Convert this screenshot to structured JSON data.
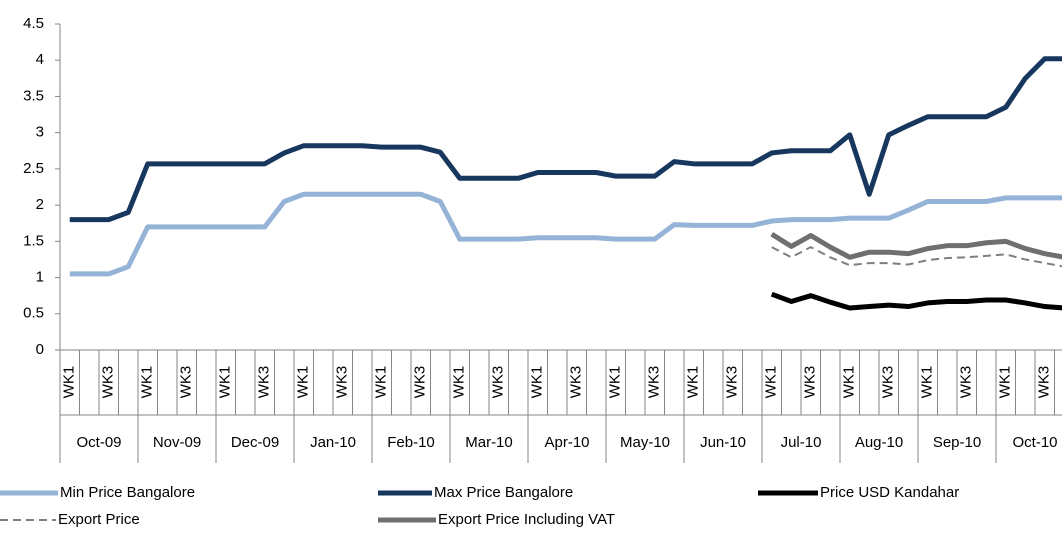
{
  "chart_data": {
    "type": "line",
    "categories": [
      "WK1",
      null,
      "WK3",
      null,
      "WK1",
      null,
      "WK3",
      null,
      "WK1",
      null,
      "WK3",
      null,
      "WK1",
      null,
      "WK3",
      null,
      "WK1",
      null,
      "WK3",
      null,
      "WK1",
      null,
      "WK3",
      null,
      "WK1",
      null,
      "WK3",
      null,
      "WK1",
      null,
      "WK3",
      null,
      "WK1",
      null,
      "WK3",
      null,
      "WK1",
      null,
      "WK3",
      null,
      "WK1",
      null,
      "WK3",
      null,
      "WK1",
      null,
      "WK3",
      null,
      "WK1",
      null,
      "WK3",
      null
    ],
    "months": [
      "Oct-09",
      "Nov-09",
      "Dec-09",
      "Jan-10",
      "Feb-10",
      "Mar-10",
      "Apr-10",
      "May-10",
      "Jun-10",
      "Jul-10",
      "Aug-10",
      "Sep-10",
      "Oct-10"
    ],
    "ylim": [
      0,
      4.5
    ],
    "yticks": [
      0,
      0.5,
      1,
      1.5,
      2,
      2.5,
      3,
      3.5,
      4,
      4.5
    ],
    "series": [
      {
        "name": "Min Price Bangalore",
        "color": "#95b3d7",
        "values": [
          1.05,
          1.05,
          1.05,
          1.15,
          1.7,
          1.7,
          1.7,
          1.7,
          1.7,
          1.7,
          1.7,
          2.05,
          2.15,
          2.15,
          2.15,
          2.15,
          2.15,
          2.15,
          2.15,
          2.05,
          1.53,
          1.53,
          1.53,
          1.53,
          1.55,
          1.55,
          1.55,
          1.55,
          1.53,
          1.53,
          1.53,
          1.73,
          1.72,
          1.72,
          1.72,
          1.72,
          1.78,
          1.8,
          1.8,
          1.8,
          1.82,
          1.82,
          1.82,
          1.93,
          2.05,
          2.05,
          2.05,
          2.05,
          2.1,
          2.1,
          2.1,
          2.1
        ]
      },
      {
        "name": "Max Price Bangalore",
        "color": "#17375e",
        "values": [
          1.8,
          1.8,
          1.8,
          1.9,
          2.57,
          2.57,
          2.57,
          2.57,
          2.57,
          2.57,
          2.57,
          2.72,
          2.82,
          2.82,
          2.82,
          2.82,
          2.8,
          2.8,
          2.8,
          2.73,
          2.37,
          2.37,
          2.37,
          2.37,
          2.45,
          2.45,
          2.45,
          2.45,
          2.4,
          2.4,
          2.4,
          2.6,
          2.57,
          2.57,
          2.57,
          2.57,
          2.72,
          2.75,
          2.75,
          2.75,
          2.97,
          2.15,
          2.97,
          3.1,
          3.22,
          3.22,
          3.22,
          3.22,
          3.35,
          3.75,
          4.02,
          4.02
        ]
      },
      {
        "name": "Price USD Kandahar",
        "color": "#000000",
        "values": [
          null,
          null,
          null,
          null,
          null,
          null,
          null,
          null,
          null,
          null,
          null,
          null,
          null,
          null,
          null,
          null,
          null,
          null,
          null,
          null,
          null,
          null,
          null,
          null,
          null,
          null,
          null,
          null,
          null,
          null,
          null,
          null,
          null,
          null,
          null,
          null,
          0.77,
          0.67,
          0.75,
          0.66,
          0.58,
          0.6,
          0.62,
          0.6,
          0.65,
          0.67,
          0.67,
          0.69,
          0.69,
          0.65,
          0.6,
          0.58
        ]
      },
      {
        "name": "Export Price",
        "color": "#7f7f7f",
        "dashed": true,
        "values": [
          null,
          null,
          null,
          null,
          null,
          null,
          null,
          null,
          null,
          null,
          null,
          null,
          null,
          null,
          null,
          null,
          null,
          null,
          null,
          null,
          null,
          null,
          null,
          null,
          null,
          null,
          null,
          null,
          null,
          null,
          null,
          null,
          null,
          null,
          null,
          null,
          1.42,
          1.28,
          1.42,
          1.28,
          1.17,
          1.2,
          1.2,
          1.18,
          1.24,
          1.27,
          1.28,
          1.3,
          1.32,
          1.25,
          1.2,
          1.15
        ]
      },
      {
        "name": "Export Price Including VAT",
        "color": "#6f6f6f",
        "values": [
          null,
          null,
          null,
          null,
          null,
          null,
          null,
          null,
          null,
          null,
          null,
          null,
          null,
          null,
          null,
          null,
          null,
          null,
          null,
          null,
          null,
          null,
          null,
          null,
          null,
          null,
          null,
          null,
          null,
          null,
          null,
          null,
          null,
          null,
          null,
          null,
          1.6,
          1.43,
          1.58,
          1.42,
          1.28,
          1.35,
          1.35,
          1.33,
          1.4,
          1.44,
          1.44,
          1.48,
          1.5,
          1.4,
          1.33,
          1.28
        ]
      }
    ]
  }
}
